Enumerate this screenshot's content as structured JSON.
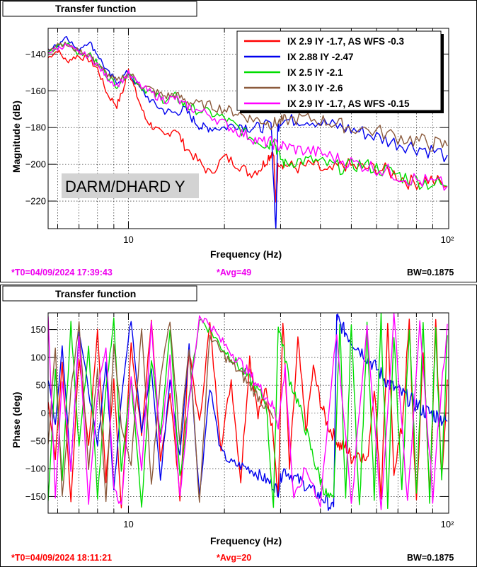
{
  "chart_data": [
    {
      "type": "line",
      "title": "Transfer function",
      "xlabel": "Frequency (Hz)",
      "ylabel": "Magnitude (dB)",
      "xscale": "log",
      "xlim": [
        5.6,
        101
      ],
      "ylim": [
        -235,
        -126
      ],
      "xticks": [
        {
          "value": 10,
          "label": "10"
        },
        {
          "value": 100,
          "label": "10²"
        }
      ],
      "yticks": [
        -140,
        -160,
        -180,
        -200,
        -220
      ],
      "grid": true,
      "legend_position": "top-right",
      "annotation": "DARM/DHARD Y",
      "footer": {
        "left": "*T0=04/09/2024 17:39:43",
        "left_color": "#ee00ee",
        "center": "*Avg=49",
        "center_color": "#ee00ee",
        "right": "BW=0.1875"
      },
      "series": [
        {
          "name": "IX 2.9 IY -1.7, AS WFS -0.3",
          "color": "#ff0000",
          "x": [
            5.6,
            6.0,
            6.4,
            6.9,
            7.5,
            8.0,
            8.6,
            9.2,
            9.7,
            10.0,
            10.5,
            11.3,
            12,
            13,
            14,
            15,
            16.5,
            18,
            20,
            22,
            24,
            26,
            27.5,
            28.5,
            29.0,
            29.5,
            31,
            34,
            38,
            42,
            47,
            53,
            60,
            68,
            77,
            87,
            100
          ],
          "y": [
            -142,
            -138,
            -144,
            -141,
            -143,
            -148,
            -162,
            -168,
            -158,
            -148,
            -160,
            -175,
            -180,
            -185,
            -180,
            -190,
            -198,
            -205,
            -196,
            -200,
            -205,
            -202,
            -196,
            -192,
            -222,
            -198,
            -200,
            -202,
            -200,
            -205,
            -200,
            -202,
            -202,
            -205,
            -210,
            -208,
            -212
          ]
        },
        {
          "name": "IX 2.88 IY -2.47",
          "color": "#0000ee",
          "x": [
            5.6,
            6.0,
            6.4,
            6.9,
            7.5,
            8.0,
            8.6,
            9.2,
            10.0,
            11,
            12,
            13,
            14,
            15,
            16,
            17,
            18,
            20,
            22,
            24,
            26,
            28,
            29.0,
            29.4,
            30,
            33,
            37,
            42,
            47,
            53,
            60,
            68,
            77,
            87,
            100
          ],
          "y": [
            -138,
            -135,
            -130,
            -138,
            -133,
            -140,
            -150,
            -155,
            -150,
            -160,
            -167,
            -171,
            -172,
            -170,
            -176,
            -180,
            -180,
            -180,
            -178,
            -180,
            -180,
            -178,
            -236,
            -180,
            -176,
            -176,
            -176,
            -178,
            -180,
            -182,
            -185,
            -188,
            -190,
            -192,
            -195
          ]
        },
        {
          "name": "IX 2.5 IY -2.1",
          "color": "#00dd00",
          "x": [
            5.6,
            6.0,
            6.4,
            6.9,
            7.5,
            8.0,
            8.6,
            9.2,
            10.0,
            11,
            12,
            13,
            14,
            15,
            16,
            18,
            20,
            22,
            24,
            26,
            27.5,
            28.5,
            29.5,
            31,
            34,
            38,
            42,
            47,
            53,
            60,
            68,
            77,
            87,
            100
          ],
          "y": [
            -140,
            -136,
            -134,
            -139,
            -140,
            -145,
            -152,
            -157,
            -150,
            -158,
            -162,
            -165,
            -163,
            -168,
            -170,
            -172,
            -175,
            -180,
            -185,
            -188,
            -190,
            -185,
            -195,
            -200,
            -198,
            -198,
            -200,
            -202,
            -200,
            -202,
            -205,
            -208,
            -210,
            -212
          ]
        },
        {
          "name": "IX 3.0 IY -2.6",
          "color": "#8b5a3c",
          "x": [
            5.6,
            6.0,
            6.4,
            6.9,
            7.5,
            8.0,
            8.6,
            9.2,
            10.0,
            11,
            12,
            13,
            14,
            15,
            16,
            18,
            20,
            22,
            24,
            26,
            28,
            29.5,
            31,
            35,
            40,
            45,
            50,
            60,
            70,
            80,
            90,
            100
          ],
          "y": [
            -138,
            -134,
            -135,
            -138,
            -140,
            -146,
            -151,
            -155,
            -150,
            -157,
            -160,
            -163,
            -162,
            -165,
            -167,
            -168,
            -170,
            -172,
            -175,
            -176,
            -178,
            -177,
            -176,
            -175,
            -176,
            -178,
            -180,
            -182,
            -185,
            -187,
            -189,
            -190
          ]
        },
        {
          "name": "IX 2.9 IY -1.7, AS WFS -0.15",
          "color": "#ff00ff",
          "x": [
            5.6,
            6.0,
            6.4,
            6.9,
            7.5,
            8.0,
            8.6,
            9.2,
            10.0,
            11,
            12,
            13,
            14,
            15,
            16,
            18,
            20,
            22,
            24,
            26,
            28,
            29.5,
            31,
            34,
            38,
            42,
            47,
            53,
            60,
            68,
            77,
            87,
            100
          ],
          "y": [
            -139,
            -137,
            -135,
            -139,
            -141,
            -146,
            -153,
            -157,
            -151,
            -158,
            -162,
            -165,
            -164,
            -168,
            -170,
            -173,
            -178,
            -182,
            -185,
            -188,
            -188,
            -190,
            -190,
            -192,
            -193,
            -195,
            -198,
            -200,
            -202,
            -205,
            -208,
            -210,
            -212
          ]
        }
      ]
    },
    {
      "type": "line",
      "title": "Transfer function",
      "xlabel": "Frequency (Hz)",
      "ylabel": "Phase (deg)",
      "xscale": "log",
      "xlim": [
        5.6,
        101
      ],
      "ylim": [
        -180,
        180
      ],
      "xticks": [
        {
          "value": 10,
          "label": "10"
        },
        {
          "value": 100,
          "label": "10²"
        }
      ],
      "yticks": [
        150,
        100,
        50,
        0,
        -50,
        -100,
        -150
      ],
      "grid": true,
      "footer": {
        "left": "*T0=04/09/2024 18:11:21",
        "left_color": "#ff0000",
        "center": "*Avg=20",
        "center_color": "#ff0000",
        "right": "BW=0.1875"
      },
      "series": [
        {
          "name": "IX 2.9 IY -1.7, AS WFS -0.3",
          "color": "#ff0000",
          "x": [
            5.6,
            5.9,
            6.2,
            6.6,
            7.0,
            7.5,
            8.0,
            8.5,
            9.0,
            9.5,
            10.2,
            11,
            11.8,
            12.6,
            13.5,
            14.5,
            15.5,
            16.7,
            18,
            19.5,
            21,
            22.5,
            24,
            25.5,
            27,
            28.5,
            29.5,
            30.5,
            32,
            34,
            36,
            38,
            40,
            42,
            44,
            46,
            48,
            50,
            53,
            56,
            59,
            62,
            65,
            68,
            72,
            76,
            80,
            84,
            88,
            92,
            96,
            100
          ],
          "y": [
            20,
            -80,
            90,
            -160,
            100,
            -60,
            150,
            -120,
            60,
            -170,
            120,
            -40,
            170,
            -90,
            40,
            -150,
            110,
            -20,
            160,
            -60,
            60,
            -120,
            100,
            0,
            40,
            -40,
            -150,
            170,
            -100,
            130,
            -30,
            80,
            20,
            -20,
            -40,
            -60,
            -60,
            -80,
            -70,
            -90,
            50,
            -150,
            150,
            -100,
            -30,
            160,
            -170,
            120,
            -150,
            160,
            -120,
            60
          ]
        },
        {
          "name": "IX 2.88 IY -2.47",
          "color": "#0000ee",
          "x": [
            5.6,
            5.9,
            6.2,
            6.6,
            7.0,
            7.5,
            8.0,
            8.5,
            9.0,
            9.5,
            10.2,
            11,
            11.8,
            12.6,
            13.5,
            14.5,
            15.5,
            16.7,
            18,
            19.5,
            21,
            22.5,
            24,
            25.5,
            27,
            28.5,
            29.5,
            30.5,
            32,
            34,
            36,
            38,
            40,
            42,
            44,
            45,
            46,
            48,
            50,
            53,
            56,
            59,
            62,
            65,
            68,
            72,
            76,
            80,
            84,
            88,
            92,
            96,
            100
          ],
          "y": [
            60,
            -20,
            120,
            -100,
            150,
            40,
            -60,
            90,
            -140,
            30,
            170,
            -30,
            80,
            -120,
            60,
            -80,
            120,
            -150,
            50,
            -70,
            -90,
            -95,
            -100,
            -110,
            -120,
            -130,
            -140,
            -100,
            -110,
            -120,
            -130,
            -140,
            -150,
            -160,
            -175,
            175,
            160,
            145,
            130,
            115,
            100,
            85,
            70,
            55,
            45,
            35,
            25,
            15,
            5,
            0,
            -5,
            -10,
            -15
          ]
        },
        {
          "name": "IX 2.5 IY -2.1",
          "color": "#00dd00",
          "x": [
            5.6,
            5.9,
            6.2,
            6.6,
            7.0,
            7.5,
            8.0,
            8.5,
            9.0,
            9.5,
            10.2,
            11,
            11.8,
            12.6,
            13.5,
            14.5,
            15.5,
            16.7,
            18,
            19.5,
            21,
            22.5,
            24,
            25.5,
            27,
            28.5,
            29.5,
            30.5,
            32,
            34,
            36,
            38,
            40,
            42,
            44,
            46,
            48,
            50,
            53,
            56,
            59,
            62,
            65,
            68,
            72,
            76,
            80,
            84,
            88,
            92,
            96,
            100
          ],
          "y": [
            -160,
            80,
            -120,
            160,
            -60,
            120,
            -150,
            40,
            170,
            -100,
            60,
            -170,
            100,
            -40,
            150,
            -120,
            30,
            170,
            150,
            120,
            100,
            80,
            60,
            40,
            20,
            -170,
            160,
            120,
            60,
            20,
            -30,
            -80,
            -120,
            -150,
            -160,
            160,
            -160,
            170,
            -170,
            150,
            -150,
            170,
            -160,
            140,
            -150,
            160,
            -140,
            150,
            -150,
            160,
            -130,
            140
          ]
        },
        {
          "name": "IX 3.0 IY -2.6",
          "color": "#8b5a3c",
          "x": [
            5.6,
            5.9,
            6.2,
            6.6,
            7.0,
            7.5,
            8.0,
            8.5,
            9.0,
            9.5,
            10.2,
            11,
            11.8,
            12.6,
            13.5,
            14.5,
            15.5,
            16.7,
            18,
            19.5,
            21,
            22.5,
            24,
            25.5,
            27,
            28.5
          ],
          "y": [
            -60,
            120,
            -150,
            40,
            160,
            -100,
            80,
            -160,
            130,
            -20,
            -90,
            150,
            -130,
            60,
            170,
            -50,
            120,
            -160,
            140,
            110,
            90,
            70,
            50,
            30,
            10,
            -10
          ]
        },
        {
          "name": "IX 2.9 IY -1.7, AS WFS -0.15",
          "color": "#ff00ff",
          "x": [
            5.6,
            5.9,
            6.2,
            6.6,
            7.0,
            7.5,
            8.0,
            8.5,
            9.0,
            9.5,
            10.2,
            11,
            11.8,
            12.6,
            13.5,
            14.5,
            15.5,
            16.7,
            18,
            19.5,
            21,
            22.5,
            24,
            25.5,
            27,
            28.5,
            29.5,
            31,
            33,
            36,
            40,
            45,
            50,
            56,
            62,
            68,
            75,
            82,
            90,
            100
          ],
          "y": [
            170,
            -150,
            60,
            -100,
            140,
            -160,
            40,
            120,
            -130,
            -170,
            70,
            -110,
            160,
            -60,
            100,
            -150,
            20,
            175,
            160,
            130,
            110,
            90,
            70,
            50,
            30,
            10,
            -20,
            80,
            -160,
            -100,
            -160,
            150,
            -170,
            160,
            -170,
            170,
            -160,
            165,
            -150,
            160
          ]
        }
      ]
    }
  ],
  "legend": {
    "entries": [
      {
        "label": "IX 2.9 IY -1.7, AS WFS -0.3",
        "color": "#ff0000"
      },
      {
        "label": "IX 2.88 IY -2.47",
        "color": "#0000ee"
      },
      {
        "label": "IX 2.5 IY -2.1",
        "color": "#00dd00"
      },
      {
        "label": "IX 3.0 IY -2.6",
        "color": "#8b5a3c"
      },
      {
        "label": "IX 2.9 IY -1.7, AS WFS -0.15",
        "color": "#ff00ff"
      }
    ]
  }
}
